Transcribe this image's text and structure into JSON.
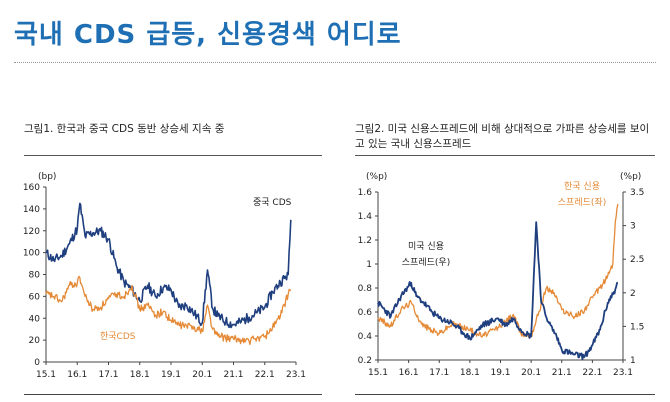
{
  "headline": "국내 CDS 급등, 신용경색 어디로",
  "charts": [
    {
      "caption": "그림1.  한국과 중국 CDS 동반 상승세 지속 중",
      "chart_data": {
        "type": "line",
        "x_ticks": [
          "15.1",
          "16.1",
          "17.1",
          "18.1",
          "19.1",
          "20.1",
          "21.1",
          "22.1",
          "23.1"
        ],
        "y_label": "(bp)",
        "ylim": [
          0,
          160
        ],
        "y_ticks": [
          0,
          20,
          40,
          60,
          80,
          100,
          120,
          140,
          160
        ],
        "series": [
          {
            "name": "중국 CDS",
            "color": "#1f3f7f",
            "points": [
              [
                "2015-01",
                100
              ],
              [
                "2015-04",
                93
              ],
              [
                "2015-07",
                97
              ],
              [
                "2015-10",
                108
              ],
              [
                "2016-01",
                122
              ],
              [
                "2016-02",
                145
              ],
              [
                "2016-04",
                115
              ],
              [
                "2016-07",
                118
              ],
              [
                "2016-10",
                120
              ],
              [
                "2017-01",
                112
              ],
              [
                "2017-04",
                88
              ],
              [
                "2017-07",
                73
              ],
              [
                "2017-10",
                66
              ],
              [
                "2018-01",
                56
              ],
              [
                "2018-04",
                70
              ],
              [
                "2018-07",
                60
              ],
              [
                "2018-10",
                68
              ],
              [
                "2019-01",
                66
              ],
              [
                "2019-04",
                50
              ],
              [
                "2019-07",
                52
              ],
              [
                "2019-10",
                44
              ],
              [
                "2020-01",
                36
              ],
              [
                "2020-03",
                84
              ],
              [
                "2020-05",
                49
              ],
              [
                "2020-07",
                42
              ],
              [
                "2020-10",
                37
              ],
              [
                "2021-01",
                34
              ],
              [
                "2021-04",
                37
              ],
              [
                "2021-07",
                41
              ],
              [
                "2021-10",
                45
              ],
              [
                "2022-01",
                50
              ],
              [
                "2022-04",
                64
              ],
              [
                "2022-07",
                73
              ],
              [
                "2022-10",
                80
              ],
              [
                "2022-11",
                130
              ]
            ]
          },
          {
            "name": "한국CDS",
            "color": "#e58a37",
            "points": [
              [
                "2015-01",
                62
              ],
              [
                "2015-04",
                60
              ],
              [
                "2015-07",
                55
              ],
              [
                "2015-10",
                70
              ],
              [
                "2016-01",
                72
              ],
              [
                "2016-02",
                77
              ],
              [
                "2016-04",
                60
              ],
              [
                "2016-07",
                48
              ],
              [
                "2016-10",
                50
              ],
              [
                "2017-01",
                58
              ],
              [
                "2017-04",
                62
              ],
              [
                "2017-07",
                60
              ],
              [
                "2017-10",
                70
              ],
              [
                "2018-01",
                48
              ],
              [
                "2018-04",
                52
              ],
              [
                "2018-07",
                43
              ],
              [
                "2018-10",
                46
              ],
              [
                "2019-01",
                38
              ],
              [
                "2019-04",
                34
              ],
              [
                "2019-07",
                33
              ],
              [
                "2019-10",
                32
              ],
              [
                "2020-01",
                28
              ],
              [
                "2020-03",
                52
              ],
              [
                "2020-05",
                30
              ],
              [
                "2020-07",
                24
              ],
              [
                "2020-10",
                22
              ],
              [
                "2021-01",
                21
              ],
              [
                "2021-04",
                20
              ],
              [
                "2021-07",
                19
              ],
              [
                "2021-10",
                22
              ],
              [
                "2022-01",
                23
              ],
              [
                "2022-04",
                32
              ],
              [
                "2022-07",
                42
              ],
              [
                "2022-10",
                62
              ],
              [
                "2022-11",
                65
              ]
            ]
          }
        ]
      }
    },
    {
      "caption": "그림2.  미국 신용스프레드에 비해 상대적으로 가파른 상승세를 보이고 있는 국내 신용스프레드",
      "chart_data": {
        "type": "line",
        "x_ticks": [
          "15.1",
          "16.1",
          "17.1",
          "18.1",
          "19.1",
          "20.1",
          "21.1",
          "22.1",
          "23.1"
        ],
        "y_left_label": "(%p)",
        "y_right_label": "(%p)",
        "ylim_left": [
          0.2,
          1.6
        ],
        "ylim_right": [
          1,
          3.5
        ],
        "y_left_ticks": [
          0.2,
          0.4,
          0.6,
          0.8,
          1,
          1.2,
          1.4,
          1.6
        ],
        "y_right_ticks": [
          1,
          1.5,
          2,
          2.5,
          3,
          3.5
        ],
        "series": [
          {
            "name": "미국 신용 스프레드(우)",
            "axis": "right",
            "color": "#1f3f7f",
            "points": [
              [
                "2015-01",
                1.85
              ],
              [
                "2015-06",
                1.65
              ],
              [
                "2015-10",
                1.95
              ],
              [
                "2016-02",
                2.15
              ],
              [
                "2016-04",
                1.95
              ],
              [
                "2016-07",
                1.85
              ],
              [
                "2016-10",
                1.72
              ],
              [
                "2017-01",
                1.62
              ],
              [
                "2017-06",
                1.55
              ],
              [
                "2017-10",
                1.42
              ],
              [
                "2018-01",
                1.32
              ],
              [
                "2018-06",
                1.52
              ],
              [
                "2018-12",
                1.62
              ],
              [
                "2019-03",
                1.52
              ],
              [
                "2019-06",
                1.62
              ],
              [
                "2019-09",
                1.45
              ],
              [
                "2020-01",
                1.35
              ],
              [
                "2020-03",
                3.05
              ],
              [
                "2020-05",
                1.85
              ],
              [
                "2020-08",
                1.55
              ],
              [
                "2020-11",
                1.35
              ],
              [
                "2021-01",
                1.15
              ],
              [
                "2021-06",
                1.08
              ],
              [
                "2021-10",
                1.05
              ],
              [
                "2022-01",
                1.22
              ],
              [
                "2022-04",
                1.45
              ],
              [
                "2022-07",
                1.85
              ],
              [
                "2022-10",
                2.05
              ],
              [
                "2022-11",
                2.15
              ]
            ]
          },
          {
            "name": "한국 신용 스프레드(좌)",
            "axis": "left",
            "color": "#e58a37",
            "points": [
              [
                "2015-01",
                0.55
              ],
              [
                "2015-06",
                0.48
              ],
              [
                "2015-10",
                0.62
              ],
              [
                "2016-02",
                0.68
              ],
              [
                "2016-06",
                0.5
              ],
              [
                "2016-10",
                0.45
              ],
              [
                "2017-01",
                0.42
              ],
              [
                "2017-06",
                0.5
              ],
              [
                "2017-10",
                0.48
              ],
              [
                "2018-01",
                0.45
              ],
              [
                "2018-06",
                0.4
              ],
              [
                "2018-12",
                0.47
              ],
              [
                "2019-03",
                0.52
              ],
              [
                "2019-06",
                0.58
              ],
              [
                "2019-09",
                0.42
              ],
              [
                "2020-01",
                0.4
              ],
              [
                "2020-04",
                0.6
              ],
              [
                "2020-07",
                0.8
              ],
              [
                "2020-10",
                0.76
              ],
              [
                "2021-01",
                0.62
              ],
              [
                "2021-06",
                0.56
              ],
              [
                "2021-10",
                0.62
              ],
              [
                "2022-01",
                0.72
              ],
              [
                "2022-04",
                0.8
              ],
              [
                "2022-07",
                0.9
              ],
              [
                "2022-09",
                1.0
              ],
              [
                "2022-10",
                1.35
              ],
              [
                "2022-11",
                1.5
              ]
            ]
          }
        ]
      }
    }
  ],
  "labels": {
    "chart1_china": "중국 CDS",
    "chart1_korea": "한국CDS",
    "chart2_us_line1": "미국 신용",
    "chart2_us_line2": "스프레드(우)",
    "chart2_kr_line1": "한국 신용",
    "chart2_kr_line2": "스프레드(좌)"
  }
}
